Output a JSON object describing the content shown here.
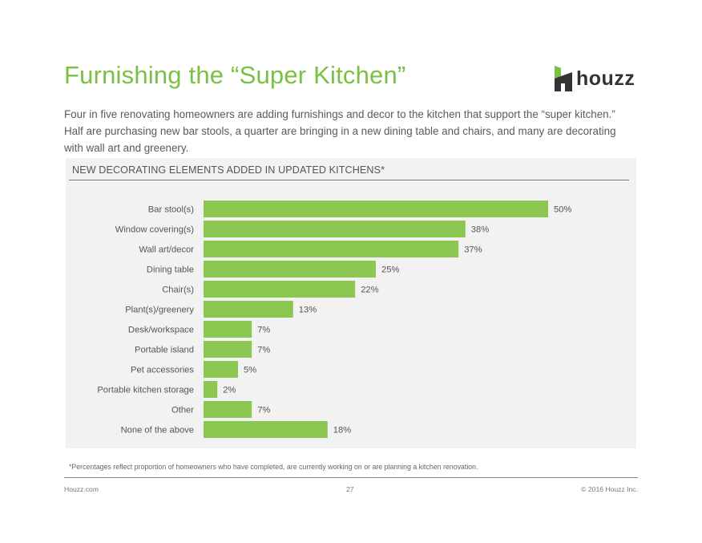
{
  "header": {
    "title": "Furnishing the “Super Kitchen”",
    "logo_text": "houzz",
    "logo_icon": "houzz-logo-icon"
  },
  "intro_text": "Four in five renovating homeowners are adding furnishings and decor to the kitchen that support the “super kitchen.” Half are purchasing new bar stools, a quarter are bringing in a new dining table and chairs, and many are decorating with wall art and greenery.",
  "colors": {
    "accent_green": "#7AC143",
    "bar_green": "#8CC751",
    "panel_bg": "#f2f2f2",
    "text": "#555555"
  },
  "chart_data": {
    "type": "bar",
    "orientation": "horizontal",
    "title": "NEW DECORATING ELEMENTS ADDED IN UPDATED KITCHENS*",
    "categories": [
      "Bar stool(s)",
      "Window covering(s)",
      "Wall art/decor",
      "Dining table",
      "Chair(s)",
      "Plant(s)/greenery",
      "Desk/workspace",
      "Portable island",
      "Pet accessories",
      "Portable kitchen storage",
      "Other",
      "None of the above"
    ],
    "values": [
      50,
      38,
      37,
      25,
      22,
      13,
      7,
      7,
      5,
      2,
      7,
      18
    ],
    "value_labels": [
      "50%",
      "38%",
      "37%",
      "25%",
      "22%",
      "13%",
      "7%",
      "7%",
      "5%",
      "2%",
      "7%",
      "18%"
    ],
    "unit": "%",
    "xlim": [
      0,
      50
    ],
    "grid": false,
    "legend": "none"
  },
  "footnote": "*Percentages reflect proportion of homeowners who have completed, are currently working on or are planning a kitchen renovation.",
  "footer": {
    "left": "Houzz.com",
    "center": "27",
    "right": "© 2016 Houzz Inc."
  }
}
